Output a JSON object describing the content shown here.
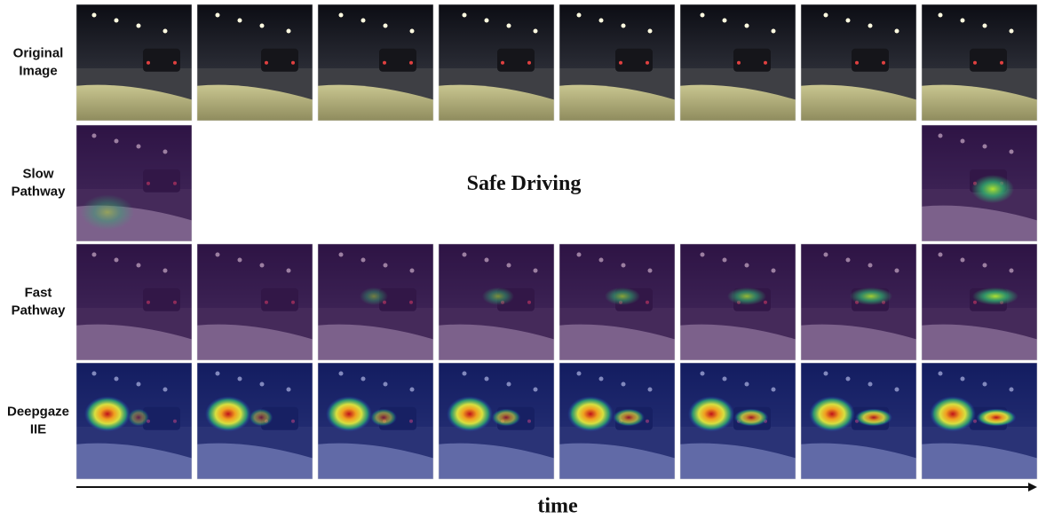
{
  "rows": [
    {
      "label": [
        "Original",
        "Image"
      ]
    },
    {
      "label": [
        "Slow",
        "Pathway"
      ]
    },
    {
      "label": [
        "Fast",
        "Pathway"
      ]
    },
    {
      "label": [
        "Deepgaze",
        "IIE"
      ]
    }
  ],
  "center_label": "Safe Driving",
  "axis_label": "time"
}
